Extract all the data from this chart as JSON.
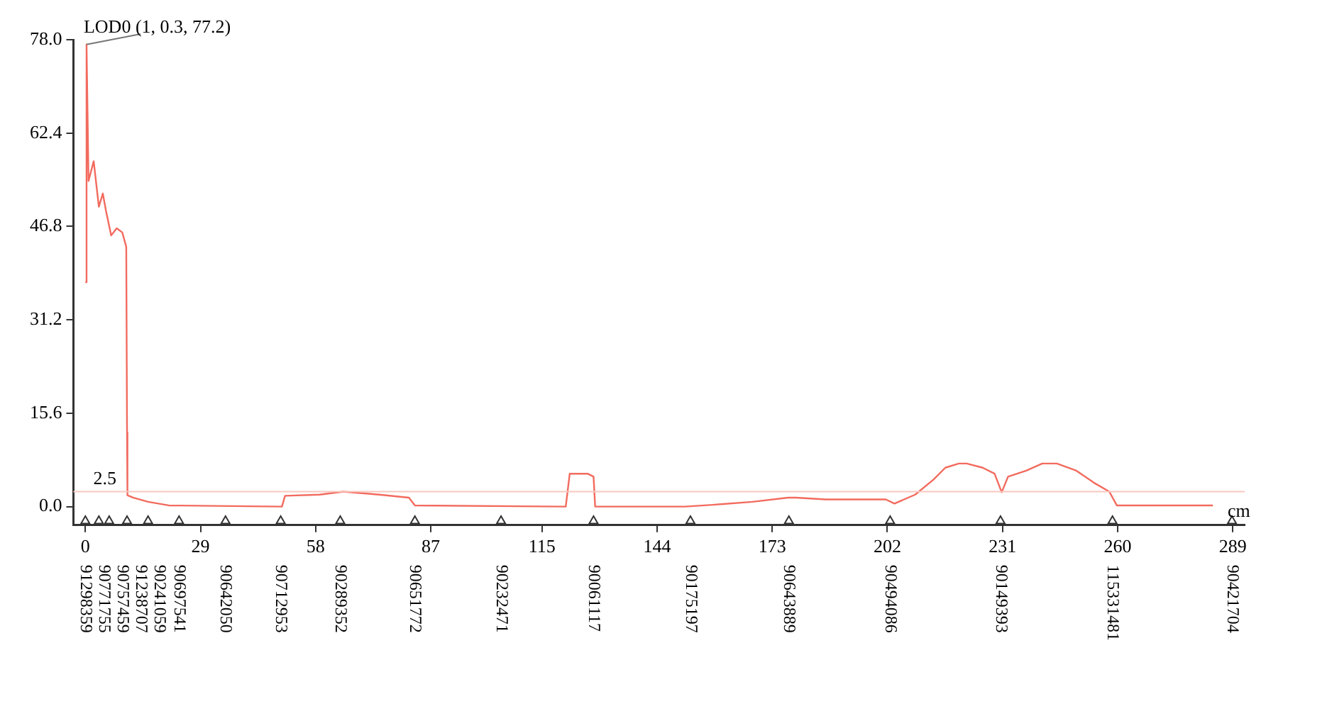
{
  "chart_data": {
    "type": "line",
    "xlabel": "cm",
    "xlim": [
      -3,
      292
    ],
    "xticks": [
      0,
      29,
      58,
      87,
      115,
      144,
      173,
      202,
      231,
      260,
      289
    ],
    "ylim": [
      -3.1,
      78
    ],
    "yticks": [
      {
        "value": 0,
        "label": "0.0"
      },
      15.6,
      31.2,
      46.8,
      62.4,
      {
        "value": 78,
        "label": "78.0"
      }
    ],
    "grid": false,
    "legend": false,
    "marker": "none",
    "line_style": "solid",
    "series": [
      {
        "color": "#f26b5e",
        "x": [
          0,
          0.3,
          0.8,
          2.1,
          3.4,
          4.4,
          5.2,
          6.5,
          7.9,
          9.3,
          10.3,
          10.5,
          10.6,
          12,
          15.8,
          21,
          49.5,
          50.3,
          59,
          65,
          74,
          81.5,
          83,
          121,
          122,
          126.5,
          128,
          128.4,
          151,
          158,
          168,
          177,
          179,
          186.5,
          201.6,
          203.8,
          209,
          213.6,
          216.6,
          220,
          222,
          226,
          229,
          230.8,
          232.4,
          237,
          241,
          244.7,
          249.6,
          254,
          257.9,
          259.8,
          284
        ],
        "values": [
          37.5,
          77.2,
          54.4,
          57.7,
          50.1,
          52.3,
          49.4,
          45.3,
          46.5,
          45.8,
          43.4,
          12.4,
          1.9,
          1.5,
          0.8,
          0.2,
          0,
          1.8,
          2,
          2.5,
          2,
          1.5,
          0.2,
          0,
          5.5,
          5.5,
          5,
          0,
          0,
          0.3,
          0.8,
          1.5,
          1.5,
          1.2,
          1.2,
          0.5,
          2,
          4.5,
          6.5,
          7.2,
          7.2,
          6.5,
          5.5,
          2.4,
          5,
          6,
          7.2,
          7.2,
          6,
          4,
          2.5,
          0.2,
          0.2
        ]
      },
      {
        "type": "scatter",
        "marker": "triangle",
        "color": "#333333",
        "x": [
          0,
          3.4,
          6.0,
          10.5,
          15.8,
          23.6,
          35.3,
          49.2,
          64.2,
          83.0,
          104.7,
          128.0,
          152.4,
          177.2,
          202.7,
          230.5,
          258.7,
          288.8
        ],
        "values": [
          -2.4,
          -2.4,
          -2.4,
          -2.4,
          -2.4,
          -2.4,
          -2.4,
          -2.4,
          -2.4,
          -2.4,
          -2.4,
          -2.4,
          -2.4,
          -2.4,
          -2.4,
          -2.4,
          -2.4,
          -2.4
        ]
      }
    ],
    "ref_lines": [
      {
        "axis": "y",
        "value": 2.5,
        "label": "2.5",
        "color": "#f8c8c0"
      }
    ],
    "annotations": [
      {
        "text": "LOD0 (1, 0.3, 77.2)",
        "x": 0.3,
        "y": 77.2
      },
      "91298359",
      "90771755",
      "90757459",
      "91238707",
      "90241059",
      "90697541",
      "90642050",
      "90712953",
      "90289352",
      "90651772",
      "90232471",
      "90061117",
      "90175197",
      "90643889",
      "90494086",
      "90149393",
      "115331481",
      "90421704"
    ]
  }
}
